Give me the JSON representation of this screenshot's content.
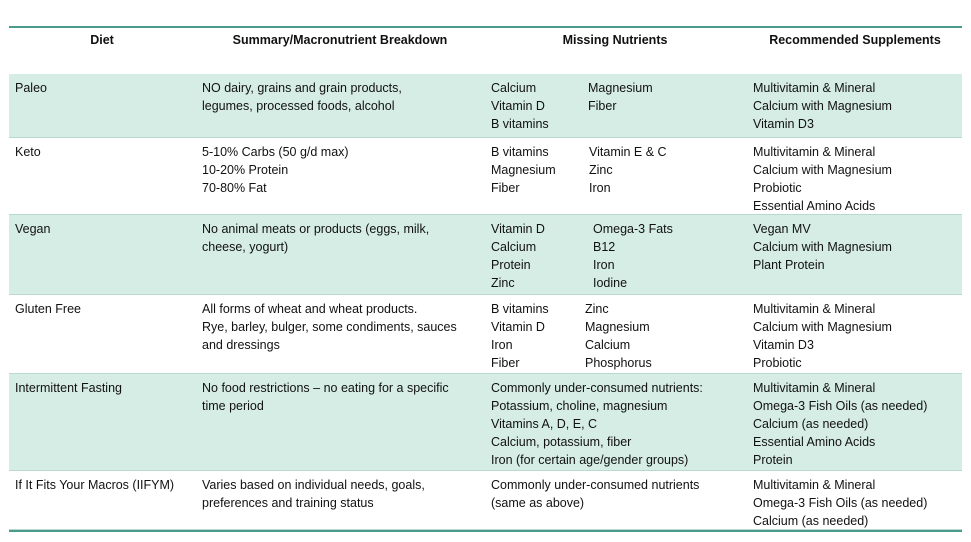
{
  "table": {
    "headers": [
      "Diet",
      "Summary/Macronutrient Breakdown",
      "Missing Nutrients",
      "Recommended Supplements"
    ],
    "rows": [
      {
        "diet": "Paleo",
        "summary": [
          "NO dairy, grains and grain products,",
          "legumes, processed foods, alcohol"
        ],
        "missing": [
          [
            "Calcium",
            "Magnesium"
          ],
          [
            "Vitamin D",
            "Fiber"
          ],
          [
            "B vitamins"
          ]
        ],
        "supplements": [
          "Multivitamin & Mineral",
          "Calcium with Magnesium",
          "Vitamin D3"
        ]
      },
      {
        "diet": "Keto",
        "summary": [
          "5-10% Carbs (50 g/d max)",
          "10-20% Protein",
          "70-80% Fat"
        ],
        "missing": [
          [
            "B vitamins",
            "Vitamin E & C"
          ],
          [
            "Magnesium",
            "Zinc"
          ],
          [
            "Fiber",
            "Iron"
          ]
        ],
        "supplements": [
          "Multivitamin & Mineral",
          "Calcium with Magnesium",
          "Probiotic",
          "Essential Amino Acids"
        ]
      },
      {
        "diet": "Vegan",
        "summary": [
          "No animal meats or products (eggs, milk,",
          "cheese, yogurt)"
        ],
        "missing": [
          [
            "Vitamin D",
            "Omega-3 Fats"
          ],
          [
            "Calcium",
            "B12"
          ],
          [
            "Protein",
            "Iron"
          ],
          [
            "Zinc",
            "Iodine"
          ]
        ],
        "supplements": [
          "Vegan MV",
          "Calcium with Magnesium",
          "Plant Protein"
        ]
      },
      {
        "diet": "Gluten Free",
        "summary": [
          "All forms of wheat and wheat products.",
          "Rye, barley, bulger, some condiments, sauces",
          "and dressings"
        ],
        "missing": [
          [
            "B vitamins",
            "Zinc"
          ],
          [
            "Vitamin D",
            "Magnesium"
          ],
          [
            "Iron",
            "Calcium"
          ],
          [
            "Fiber",
            "Phosphorus"
          ]
        ],
        "supplements": [
          "Multivitamin & Mineral",
          "Calcium with Magnesium",
          "Vitamin D3",
          "Probiotic"
        ]
      },
      {
        "diet": "Intermittent Fasting",
        "summary": [
          "No food restrictions – no eating for a specific",
          "time period"
        ],
        "missing": [
          [
            "Commonly under-consumed nutrients:"
          ],
          [
            "Potassium, choline, magnesium"
          ],
          [
            "Vitamins A, D, E, C"
          ],
          [
            "Calcium, potassium, fiber"
          ],
          [
            "Iron (for certain age/gender groups)"
          ]
        ],
        "supplements": [
          "Multivitamin & Mineral",
          "Omega-3 Fish Oils (as needed)",
          "Calcium (as needed)",
          "Essential Amino Acids",
          "Protein"
        ]
      },
      {
        "diet": "If It Fits Your Macros (IIFYM)",
        "summary": [
          "Varies based on individual needs, goals,",
          "preferences and training status"
        ],
        "missing": [
          [
            "Commonly under-consumed nutrients"
          ],
          [
            "(same as above)"
          ]
        ],
        "supplements": [
          "Multivitamin & Mineral",
          "Omega-3 Fish Oils (as needed)",
          "Calcium (as needed)"
        ]
      }
    ]
  }
}
